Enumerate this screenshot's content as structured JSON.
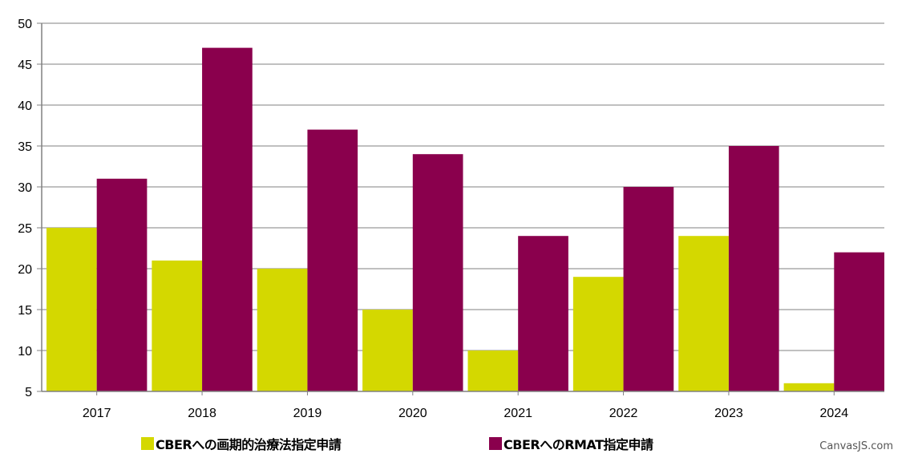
{
  "chart_data": {
    "type": "bar",
    "categories": [
      "2017",
      "2018",
      "2019",
      "2020",
      "2021",
      "2022",
      "2023",
      "2024"
    ],
    "series": [
      {
        "name": "CBERへの画期的治療法指定申請",
        "color": "#d4d800",
        "values": [
          25,
          21,
          20,
          15,
          10,
          19,
          24,
          6
        ]
      },
      {
        "name": "CBERへのRMAT指定申請",
        "color": "#8a004d",
        "values": [
          31,
          47,
          37,
          34,
          24,
          30,
          35,
          22
        ]
      }
    ],
    "ylim": [
      5,
      50
    ],
    "yticks": [
      5,
      10,
      15,
      20,
      25,
      30,
      35,
      40,
      45,
      50
    ],
    "grid": true,
    "legend_position": "bottom"
  },
  "credit": "CanvasJS.com"
}
